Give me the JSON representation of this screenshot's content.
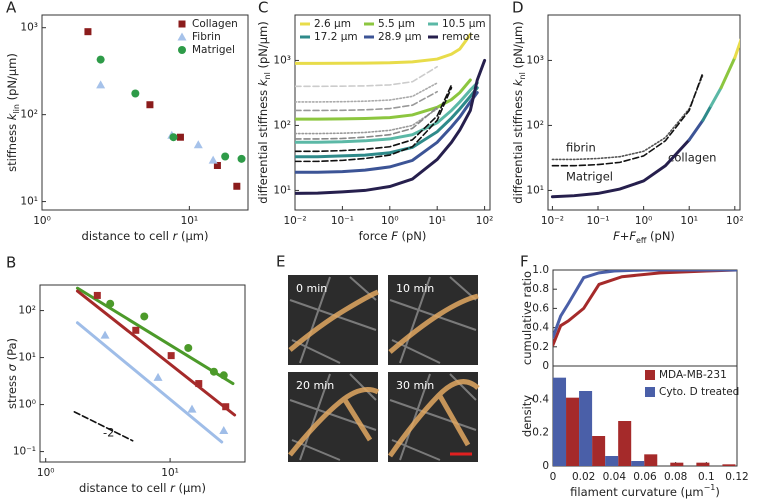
{
  "chart_data": [
    {
      "type": "scatter",
      "label": "A",
      "xscale": "log",
      "yscale": "log",
      "xlim": [
        1,
        25
      ],
      "ylim": [
        8,
        1400
      ],
      "xticks": [
        {
          "value": 1,
          "label": "10⁰"
        },
        {
          "value": 10,
          "label": "10¹"
        }
      ],
      "yticks": [
        {
          "value": 10,
          "label": "10¹"
        },
        {
          "value": 100,
          "label": "10²"
        },
        {
          "value": 1000,
          "label": "10³"
        }
      ],
      "xlabel": [
        {
          "t": "distance to cell "
        },
        {
          "t": "r",
          "i": true
        },
        {
          "t": " (μm)"
        }
      ],
      "ylabel": [
        {
          "t": "stiffness "
        },
        {
          "t": "k",
          "i": true
        },
        {
          "t": "lin",
          "sub": true
        },
        {
          "t": " (pN/μm)"
        }
      ],
      "legend": "upper right",
      "series": [
        {
          "name": "Collagen",
          "color": "#8b1c1c",
          "marker": "square",
          "x": [
            2.05,
            5.4,
            8.7,
            15.5,
            21
          ],
          "values": [
            900,
            130,
            55,
            26,
            15
          ]
        },
        {
          "name": "Fibrin",
          "color": "#a6c2ea",
          "marker": "triangle",
          "x": [
            2.5,
            7.6,
            11.5,
            14.5
          ],
          "values": [
            220,
            58,
            45,
            30
          ]
        },
        {
          "name": "Matrigel",
          "color": "#2e9b48",
          "marker": "circle",
          "x": [
            2.5,
            4.3,
            7.8,
            17.5,
            22.6
          ],
          "values": [
            430,
            175,
            55,
            33,
            31
          ]
        }
      ]
    },
    {
      "type": "scatter",
      "label": "B",
      "xscale": "log",
      "yscale": "log",
      "xlim": [
        0.9,
        40
      ],
      "ylim": [
        0.06,
        350
      ],
      "xticks": [
        {
          "value": 1,
          "label": "10⁰"
        },
        {
          "value": 10,
          "label": "10¹"
        }
      ],
      "yticks": [
        {
          "value": 0.1,
          "label": "10⁻¹"
        },
        {
          "value": 1,
          "label": "10⁰"
        },
        {
          "value": 10,
          "label": "10¹"
        },
        {
          "value": 100,
          "label": "10²"
        }
      ],
      "xlabel": [
        {
          "t": "distance to cell "
        },
        {
          "t": "r",
          "i": true
        },
        {
          "t": " (μm)"
        }
      ],
      "ylabel": [
        {
          "t": "stress "
        },
        {
          "t": "σ",
          "i": true
        },
        {
          "t": " (Pa)"
        }
      ],
      "annotations": [
        {
          "text": "-2"
        }
      ],
      "series": [
        {
          "color": "#4c9a2a",
          "style": "solid",
          "x": [
            1.8,
            32
          ],
          "values": [
            300,
            2.8
          ]
        },
        {
          "color": "#a52a2a",
          "style": "solid",
          "x": [
            1.8,
            33
          ],
          "values": [
            260,
            0.6
          ]
        },
        {
          "color": "#9fbde8",
          "style": "solid",
          "x": [
            1.8,
            26
          ],
          "values": [
            55,
            0.16
          ]
        },
        {
          "color": "#111111",
          "style": "dashed",
          "x": [
            1.7,
            5
          ],
          "values": [
            0.7,
            0.17
          ]
        },
        {
          "color": "#a52a2a",
          "marker": "square",
          "x": [
            2.6,
            5.3,
            10.2,
            17,
            28
          ],
          "values": [
            210,
            38,
            11,
            2.8,
            0.9
          ]
        },
        {
          "color": "#9fbde8",
          "marker": "triangle",
          "x": [
            3,
            8,
            15,
            27
          ],
          "values": [
            30,
            3.8,
            0.8,
            0.28
          ]
        },
        {
          "color": "#4c9a2a",
          "marker": "circle",
          "x": [
            3.3,
            6.2,
            14,
            22.5,
            27
          ],
          "values": [
            140,
            75,
            16,
            5,
            4.2
          ]
        }
      ]
    },
    {
      "type": "line",
      "label": "C",
      "xscale": "log",
      "yscale": "log",
      "xlim": [
        0.01,
        130
      ],
      "ylim": [
        5,
        5000
      ],
      "xticks": [
        {
          "value": 0.01,
          "label": "10⁻²"
        },
        {
          "value": 0.1,
          "label": "10⁻¹"
        },
        {
          "value": 1,
          "label": "10⁰"
        },
        {
          "value": 10,
          "label": "10¹"
        },
        {
          "value": 100,
          "label": "10²"
        }
      ],
      "yticks": [
        {
          "value": 10,
          "label": "10¹"
        },
        {
          "value": 100,
          "label": "10²"
        },
        {
          "value": 1000,
          "label": "10³"
        }
      ],
      "xlabel": [
        {
          "t": "force "
        },
        {
          "t": "F",
          "i": true
        },
        {
          "t": " (pN)"
        }
      ],
      "ylabel": [
        {
          "t": "differential stiffness "
        },
        {
          "t": "k",
          "i": true
        },
        {
          "t": "nl",
          "sub": true
        },
        {
          "t": " (pN/μm)"
        }
      ],
      "legend": "upper left",
      "x": [
        0.01,
        0.03,
        0.1,
        0.3,
        1,
        3,
        10,
        20,
        30,
        50,
        70,
        100
      ],
      "series": [
        {
          "name": "2.6 μm",
          "color": "#e8dc4a",
          "style": "solid",
          "values": [
            900,
            900,
            905,
            910,
            920,
            950,
            1050,
            1250,
            1500,
            2500,
            null,
            null
          ]
        },
        {
          "color": "#cccccc",
          "style": "dashed",
          "values": [
            400,
            400,
            402,
            406,
            420,
            470,
            800,
            null,
            null,
            null,
            null,
            null
          ]
        },
        {
          "color": "#aaaaaa",
          "style": "dotted",
          "values": [
            230,
            230,
            232,
            236,
            246,
            280,
            450,
            null,
            null,
            null,
            null,
            null
          ]
        },
        {
          "color": "#999999",
          "style": "dashed",
          "values": [
            170,
            170,
            171,
            174,
            182,
            205,
            330,
            null,
            null,
            null,
            null,
            null
          ]
        },
        {
          "name": "5.5 μm",
          "color": "#8cc63f",
          "style": "solid",
          "values": [
            125,
            125,
            126,
            128,
            132,
            145,
            190,
            250,
            320,
            500,
            null,
            null
          ]
        },
        {
          "color": "#999999",
          "style": "dotted",
          "values": [
            75,
            75,
            76,
            78,
            84,
            100,
            180,
            null,
            null,
            null,
            null,
            null
          ]
        },
        {
          "color": "#888888",
          "style": "dashed",
          "values": [
            62,
            62,
            63,
            66,
            72,
            90,
            190,
            null,
            null,
            null,
            null,
            null
          ]
        },
        {
          "name": "10.5 μm",
          "color": "#5bb8a6",
          "style": "solid",
          "values": [
            55,
            55,
            56,
            58,
            62,
            72,
            110,
            170,
            230,
            350,
            450,
            null
          ]
        },
        {
          "color": "#111111",
          "style": "dashed",
          "values": [
            40,
            40,
            41,
            43,
            47,
            60,
            140,
            420,
            null,
            null,
            null,
            null
          ]
        },
        {
          "name": "17.2 μm",
          "color": "#2e8a8a",
          "style": "solid",
          "values": [
            33,
            33,
            34,
            35,
            38,
            46,
            80,
            130,
            180,
            280,
            380,
            null
          ]
        },
        {
          "color": "#111111",
          "style": "dashed",
          "values": [
            28,
            28,
            29,
            31,
            35,
            47,
            120,
            380,
            null,
            null,
            null,
            null
          ]
        },
        {
          "name": "28.9 μm",
          "color": "#3c5496",
          "style": "solid",
          "values": [
            19,
            19,
            19.5,
            20.5,
            23,
            29,
            55,
            95,
            135,
            230,
            320,
            null
          ]
        },
        {
          "name": "remote",
          "color": "#261f4d",
          "style": "solid",
          "values": [
            9,
            9.1,
            9.5,
            10,
            11.5,
            15,
            30,
            55,
            85,
            170,
            500,
            1000
          ]
        }
      ]
    },
    {
      "type": "line",
      "label": "D",
      "xscale": "log",
      "yscale": "log",
      "xlim": [
        0.008,
        130
      ],
      "ylim": [
        5,
        5000
      ],
      "xticks": [
        {
          "value": 0.01,
          "label": "10⁻²"
        },
        {
          "value": 0.1,
          "label": "10⁻¹"
        },
        {
          "value": 1,
          "label": "10⁰"
        },
        {
          "value": 10,
          "label": "10¹"
        },
        {
          "value": 100,
          "label": "10²"
        }
      ],
      "yticks": [
        {
          "value": 10,
          "label": "10¹"
        },
        {
          "value": 100,
          "label": "10²"
        },
        {
          "value": 1000,
          "label": "10³"
        }
      ],
      "xlabel": [
        {
          "t": "F",
          "i": true
        },
        {
          "t": "+"
        },
        {
          "t": "F",
          "i": true
        },
        {
          "t": "eff",
          "sub": true
        },
        {
          "t": " (pN)"
        }
      ],
      "ylabel": [
        {
          "t": "differential stiffness "
        },
        {
          "t": "k",
          "i": true
        },
        {
          "t": "nl",
          "sub": true
        },
        {
          "t": " (pN/μm)"
        }
      ],
      "annotations": [
        {
          "text": "fibrin"
        },
        {
          "text": "Matrigel"
        },
        {
          "text": "collagen"
        }
      ],
      "x": [
        0.01,
        0.03,
        0.1,
        0.3,
        1,
        3,
        10,
        20,
        30,
        50,
        100,
        150
      ],
      "series": [
        {
          "color": "#555555",
          "style": "dotted",
          "values": [
            30,
            30,
            31,
            33,
            40,
            65,
            180,
            600,
            null,
            null,
            null,
            null
          ]
        },
        {
          "color": "#111111",
          "style": "dashed",
          "values": [
            24,
            24,
            25,
            27,
            34,
            58,
            170,
            650,
            null,
            null,
            null,
            null
          ]
        },
        {
          "color": "#261f4d",
          "style": "solid",
          "values": [
            8,
            8.3,
            9,
            10.5,
            14,
            24,
            60,
            null,
            null,
            null,
            null,
            null
          ]
        },
        {
          "color": "#3c5496",
          "style": "solid",
          "values": [
            null,
            null,
            null,
            null,
            null,
            null,
            60,
            120,
            null,
            null,
            null,
            null
          ]
        },
        {
          "color": "#2e8a8a",
          "style": "solid",
          "values": [
            null,
            null,
            null,
            null,
            null,
            null,
            null,
            120,
            200,
            null,
            null,
            null
          ]
        },
        {
          "color": "#5bb8a6",
          "style": "solid",
          "values": [
            null,
            null,
            null,
            null,
            null,
            null,
            null,
            null,
            200,
            380,
            null,
            null
          ]
        },
        {
          "color": "#8cc63f",
          "style": "solid",
          "values": [
            null,
            null,
            null,
            null,
            null,
            null,
            null,
            null,
            null,
            380,
            1100,
            null
          ]
        },
        {
          "color": "#e8dc4a",
          "style": "solid",
          "values": [
            null,
            null,
            null,
            null,
            null,
            null,
            null,
            null,
            null,
            null,
            1100,
            2500
          ]
        }
      ]
    },
    {
      "type": "line",
      "label": "F",
      "xlim": [
        0,
        0.12
      ],
      "ylim": [
        0,
        1
      ],
      "yticks": [
        0,
        0.2,
        0.4,
        0.6,
        0.8,
        {
          "value": 1,
          "label": "1.0"
        }
      ],
      "ylabel": [
        {
          "t": "cumulative ratio"
        }
      ],
      "series": [
        {
          "color": "#a52a2a",
          "style": "solid",
          "x": [
            0,
            0.005,
            0.01,
            0.02,
            0.03,
            0.045,
            0.07,
            0.1,
            0.12
          ],
          "values": [
            0.22,
            0.42,
            0.47,
            0.6,
            0.85,
            0.93,
            0.97,
            0.99,
            1
          ]
        },
        {
          "color": "#4a5fa8",
          "style": "solid",
          "x": [
            0,
            0.005,
            0.01,
            0.02,
            0.03,
            0.04,
            0.06,
            0.12
          ],
          "values": [
            0.3,
            0.52,
            0.65,
            0.92,
            0.97,
            0.99,
            1,
            1
          ]
        }
      ]
    },
    {
      "type": "histogram",
      "xlim": [
        0,
        0.12
      ],
      "ylim": [
        0,
        0.6
      ],
      "xticks": [
        0,
        0.02,
        0.04,
        0.06,
        0.08,
        0.1,
        0.12
      ],
      "yticks": [
        0,
        0.2,
        0.4
      ],
      "xlabel": [
        {
          "t": "filament curvature (μm"
        },
        {
          "t": "−1",
          "sup": true
        },
        {
          "t": ")"
        }
      ],
      "ylabel": [
        {
          "t": "density"
        }
      ],
      "legend": "upper right",
      "bins": [
        0,
        0.017,
        0.034,
        0.051,
        0.068,
        0.085,
        0.102,
        0.119
      ],
      "series": [
        {
          "name": "MDA-MB-231",
          "color": "#a52a2a",
          "values": [
            0.41,
            0.18,
            0.27,
            0.07,
            0.02,
            0.02,
            0.01
          ]
        },
        {
          "name": "Cyto. D treated",
          "color": "#4a5fa8",
          "values": [
            0.53,
            0.45,
            0.06,
            0.03,
            0,
            0,
            0
          ]
        }
      ]
    }
  ],
  "panel_e": {
    "label": "E",
    "frames": [
      "0 min",
      "10 min",
      "20 min",
      "30 min"
    ]
  }
}
